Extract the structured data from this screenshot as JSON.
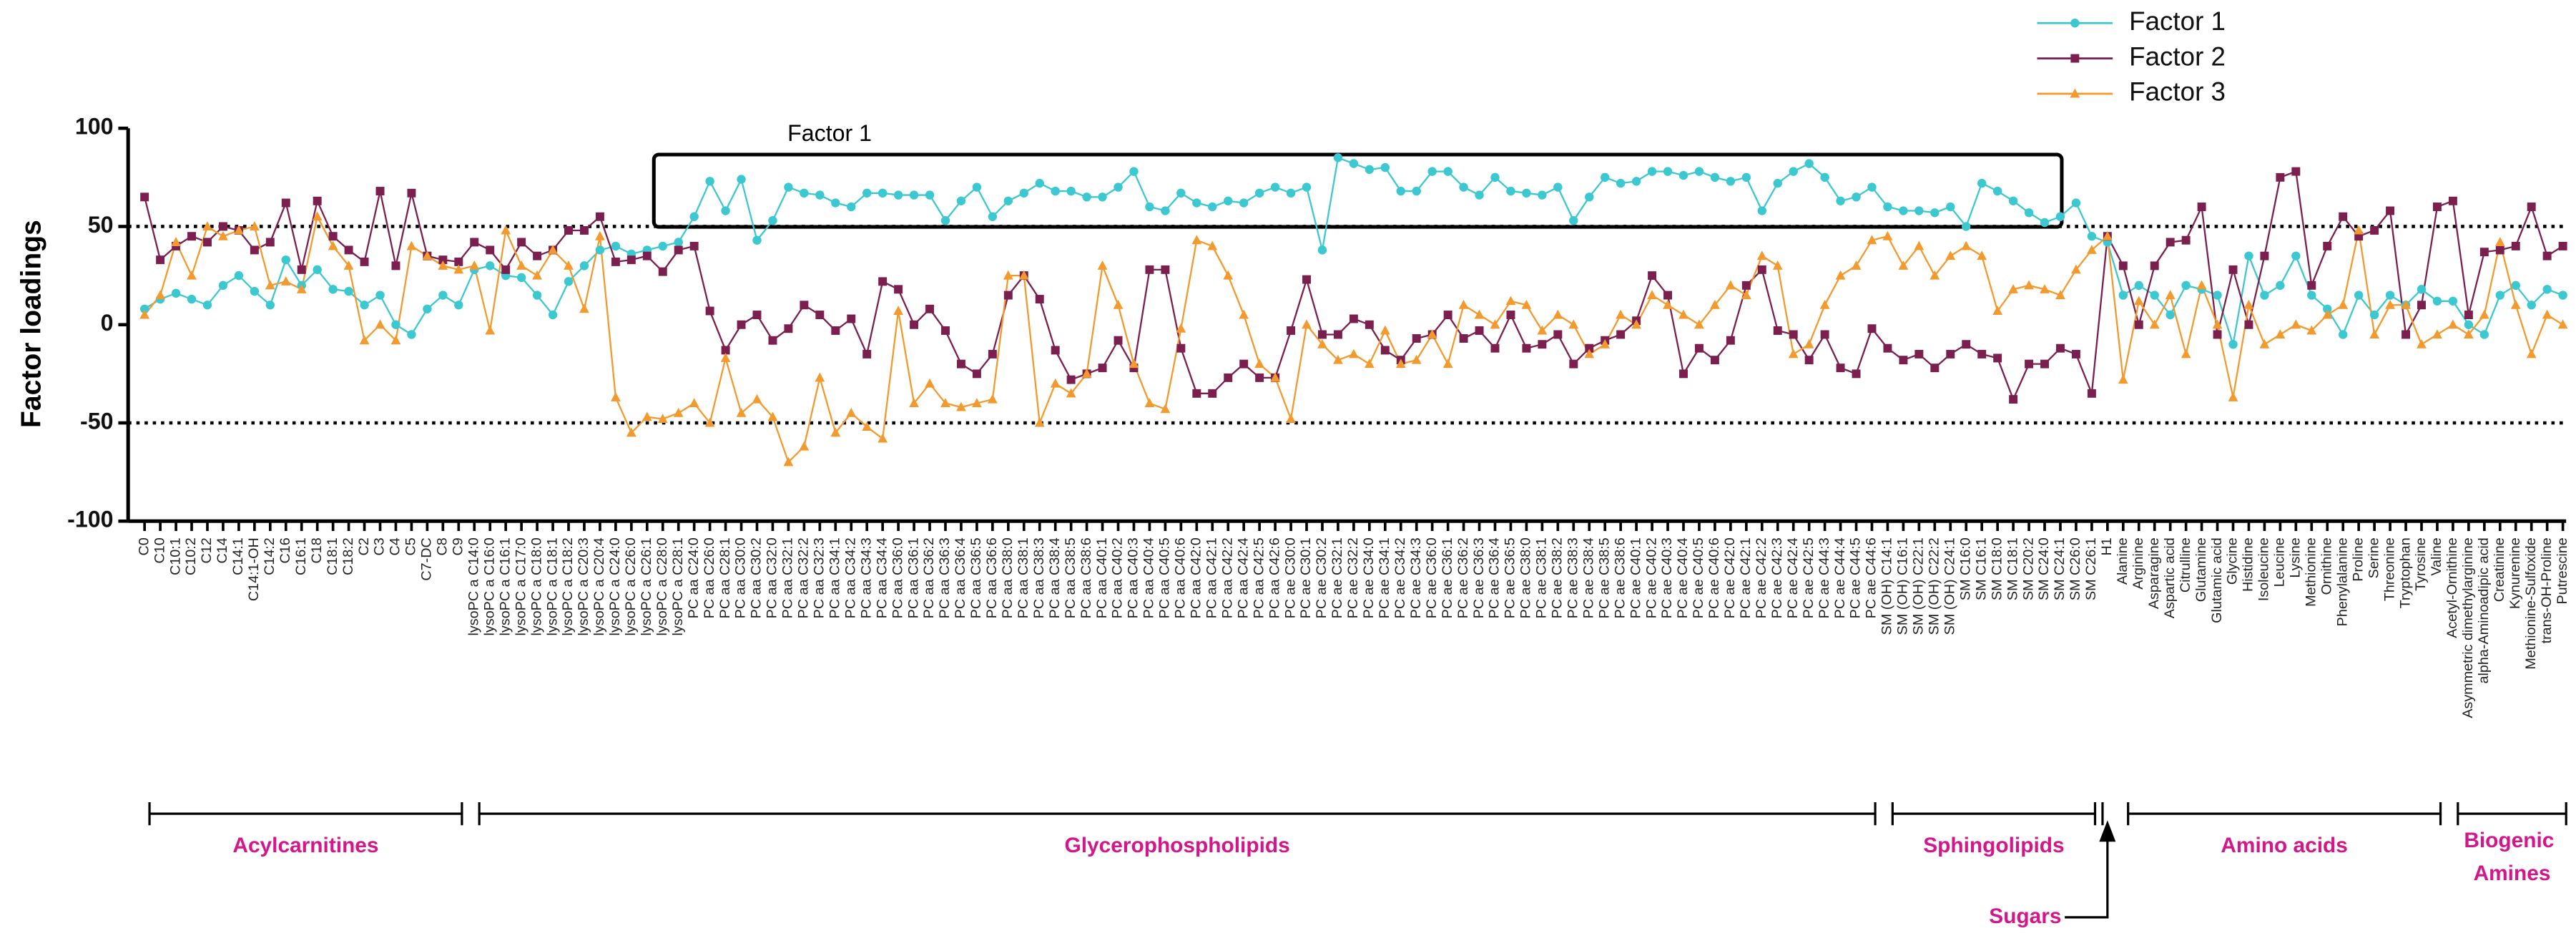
{
  "chart_data": {
    "type": "line",
    "ylabel": "Factor loadings",
    "ylim": [
      -100,
      100
    ],
    "yticks": [
      -100,
      -50,
      0,
      50,
      100
    ],
    "hlines": [
      50,
      -50
    ],
    "annotation": "Factor 1",
    "groups": [
      {
        "name": "Acylcarnitines",
        "categories": [
          "C0",
          "C10",
          "C10:1",
          "C10:2",
          "C12",
          "C14",
          "C14:1",
          "C14:1-OH",
          "C14:2",
          "C16",
          "C16:1",
          "C18",
          "C18:1",
          "C18:2",
          "C2",
          "C3",
          "C4",
          "C5",
          "C7-DC",
          "C8",
          "C9"
        ]
      },
      {
        "name": "Glycerophospholipids",
        "categories": [
          "lysoPC a C14:0",
          "lysoPC a C16:0",
          "lysoPC a C16:1",
          "lysoPC a C17:0",
          "lysoPC a C18:0",
          "lysoPC a C18:1",
          "lysoPC a C18:2",
          "lysoPC a C20:3",
          "lysoPC a C20:4",
          "lysoPC a C24:0",
          "lysoPC a C26:0",
          "lysoPC a C26:1",
          "lysoPC a C28:0",
          "lysoPC a C28:1",
          "PC aa C24:0",
          "PC aa C26:0",
          "PC aa C28:1",
          "PC aa C30:0",
          "PC aa C30:2",
          "PC aa C32:0",
          "PC aa C32:1",
          "PC aa C32:2",
          "PC aa C32:3",
          "PC aa C34:1",
          "PC aa C34:2",
          "PC aa C34:3",
          "PC aa C34:4",
          "PC aa C36:0",
          "PC aa C36:1",
          "PC aa C36:2",
          "PC aa C36:3",
          "PC aa C36:4",
          "PC aa C36:5",
          "PC aa C36:6",
          "PC aa C38:0",
          "PC aa C38:1",
          "PC aa C38:3",
          "PC aa C38:4",
          "PC aa C38:5",
          "PC aa C38:6",
          "PC aa C40:1",
          "PC aa C40:2",
          "PC aa C40:3",
          "PC aa C40:4",
          "PC aa C40:5",
          "PC aa C40:6",
          "PC aa C42:0",
          "PC aa C42:1",
          "PC aa C42:2",
          "PC aa C42:4",
          "PC aa C42:5",
          "PC aa C42:6",
          "PC ae C30:0",
          "PC ae C30:1",
          "PC ae C30:2",
          "PC ae C32:1",
          "PC ae C32:2",
          "PC ae C34:0",
          "PC ae C34:1",
          "PC ae C34:2",
          "PC ae C34:3",
          "PC ae C36:0",
          "PC ae C36:1",
          "PC ae C36:2",
          "PC ae C36:3",
          "PC ae C36:4",
          "PC ae C36:5",
          "PC ae C38:0",
          "PC ae C38:1",
          "PC ae C38:2",
          "PC ae C38:3",
          "PC ae C38:4",
          "PC ae C38:5",
          "PC ae C38:6",
          "PC ae C40:1",
          "PC ae C40:2",
          "PC ae C40:3",
          "PC ae C40:4",
          "PC ae C40:5",
          "PC ae C40:6",
          "PC ae C42:0",
          "PC ae C42:1",
          "PC ae C42:2",
          "PC ae C42:3",
          "PC ae C42:4",
          "PC ae C42:5",
          "PC ae C44:3",
          "PC ae C44:4",
          "PC ae C44:5",
          "PC ae C44:6"
        ]
      },
      {
        "name": "Sphingolipids",
        "categories": [
          "SM (OH) C14:1",
          "SM (OH) C16:1",
          "SM (OH) C22:1",
          "SM (OH) C22:2",
          "SM (OH) C24:1",
          "SM C16:0",
          "SM C16:1",
          "SM C18:0",
          "SM C18:1",
          "SM C20:2",
          "SM C24:0",
          "SM C24:1",
          "SM C26:0",
          "SM C26:1"
        ]
      },
      {
        "name": "Sugars",
        "categories": [
          "H1"
        ]
      },
      {
        "name": "Amino acids",
        "categories": [
          "Alanine",
          "Arginine",
          "Asparagine",
          "Aspartic acid",
          "Citrulline",
          "Glutamine",
          "Glutamic acid",
          "Glycine",
          "Histidine",
          "Isoleucine",
          "Leucine",
          "Lysine",
          "Methionine",
          "Ornithine",
          "Phenylalanine",
          "Proline",
          "Serine",
          "Threonine",
          "Tryptophan",
          "Tyrosine",
          "Valine"
        ]
      },
      {
        "name": "Biogenic Amines",
        "categories": [
          "Acetyl-Ornithine",
          "Asymmetric dimethylarginine",
          "alpha-Aminoadipic acid",
          "Creatinine",
          "Kynurenine",
          "Methionine-Sulfoxide",
          "trans-OH-Proline",
          "Putrescine"
        ]
      }
    ],
    "series": [
      {
        "name": "Factor 1",
        "color": "#3cc8d0",
        "marker": "circle",
        "values": [
          8,
          13,
          16,
          13,
          10,
          20,
          25,
          17,
          10,
          33,
          20,
          28,
          18,
          17,
          10,
          15,
          0,
          -5,
          8,
          15,
          10,
          28,
          30,
          25,
          24,
          15,
          5,
          22,
          30,
          38,
          40,
          36,
          38,
          40,
          42,
          55,
          73,
          58,
          74,
          43,
          53,
          70,
          67,
          66,
          62,
          60,
          67,
          67,
          66,
          66,
          66,
          53,
          63,
          70,
          55,
          63,
          67,
          72,
          68,
          68,
          65,
          65,
          70,
          78,
          60,
          58,
          67,
          62,
          60,
          63,
          62,
          67,
          70,
          67,
          70,
          38,
          85,
          82,
          79,
          80,
          68,
          68,
          78,
          78,
          70,
          66,
          75,
          68,
          67,
          66,
          70,
          53,
          65,
          75,
          72,
          73,
          78,
          78,
          76,
          78,
          75,
          73,
          75,
          58,
          72,
          78,
          82,
          75,
          63,
          65,
          70,
          60,
          58,
          58,
          57,
          60,
          50,
          72,
          68,
          63,
          57,
          52,
          55,
          62,
          45,
          42,
          15,
          20,
          15,
          5,
          20,
          18,
          15,
          -10,
          35,
          15,
          20,
          35,
          15,
          8,
          -5,
          15,
          5,
          15,
          10,
          18,
          12,
          12,
          0,
          -5,
          15,
          20,
          10,
          18,
          15
        ]
      },
      {
        "name": "Factor 2",
        "color": "#7b1f4f",
        "marker": "square",
        "values": [
          65,
          33,
          40,
          45,
          42,
          50,
          48,
          38,
          42,
          62,
          28,
          63,
          45,
          38,
          32,
          68,
          30,
          67,
          35,
          33,
          32,
          42,
          38,
          28,
          42,
          35,
          38,
          48,
          48,
          55,
          32,
          33,
          35,
          27,
          38,
          40,
          7,
          -13,
          0,
          5,
          -8,
          -2,
          10,
          5,
          -3,
          3,
          -15,
          22,
          18,
          0,
          8,
          -3,
          -20,
          -25,
          -15,
          15,
          25,
          13,
          -13,
          -28,
          -25,
          -22,
          -8,
          -22,
          28,
          28,
          -12,
          -35,
          -35,
          -27,
          -20,
          -27,
          -27,
          -3,
          23,
          -5,
          -5,
          3,
          0,
          -13,
          -18,
          -7,
          -5,
          5,
          -7,
          -3,
          -12,
          5,
          -12,
          -10,
          -5,
          -20,
          -12,
          -8,
          -5,
          2,
          25,
          15,
          -25,
          -12,
          -18,
          -8,
          20,
          28,
          -3,
          -5,
          -18,
          -5,
          -22,
          -25,
          -2,
          -12,
          -18,
          -15,
          -22,
          -15,
          -10,
          -15,
          -17,
          -38,
          -20,
          -20,
          -12,
          -15,
          -35,
          45,
          30,
          0,
          30,
          42,
          43,
          60,
          -5,
          28,
          0,
          35,
          75,
          78,
          20,
          40,
          55,
          45,
          48,
          58,
          -5,
          10,
          60,
          63,
          5,
          37,
          38,
          40,
          60,
          35,
          40
        ]
      },
      {
        "name": "Factor 3",
        "color": "#f29a2e",
        "marker": "triangle",
        "values": [
          5,
          15,
          42,
          25,
          50,
          45,
          48,
          50,
          20,
          22,
          18,
          55,
          40,
          30,
          -8,
          0,
          -8,
          40,
          35,
          30,
          28,
          30,
          -3,
          48,
          30,
          25,
          38,
          30,
          8,
          45,
          -37,
          -55,
          -47,
          -48,
          -45,
          -40,
          -50,
          -17,
          -45,
          -38,
          -47,
          -70,
          -62,
          -27,
          -55,
          -45,
          -52,
          -58,
          7,
          -40,
          -30,
          -40,
          -42,
          -40,
          -38,
          25,
          25,
          -50,
          -30,
          -35,
          -25,
          30,
          10,
          -20,
          -40,
          -43,
          -2,
          43,
          40,
          25,
          5,
          -20,
          -27,
          -48,
          0,
          -10,
          -18,
          -15,
          -20,
          -3,
          -20,
          -18,
          -5,
          -20,
          10,
          5,
          0,
          12,
          10,
          -3,
          5,
          0,
          -15,
          -10,
          5,
          0,
          15,
          10,
          5,
          0,
          10,
          20,
          15,
          35,
          30,
          -15,
          -10,
          10,
          25,
          30,
          43,
          45,
          30,
          40,
          25,
          35,
          40,
          35,
          7,
          18,
          20,
          18,
          15,
          28,
          38,
          45,
          -28,
          12,
          0,
          15,
          -15,
          20,
          0,
          -37,
          10,
          -10,
          -5,
          0,
          -3,
          5,
          10,
          48,
          -5,
          10,
          10,
          -10,
          -5,
          0,
          -5,
          5,
          42,
          10,
          -15,
          5,
          0
        ]
      }
    ],
    "legend": "top-right"
  }
}
